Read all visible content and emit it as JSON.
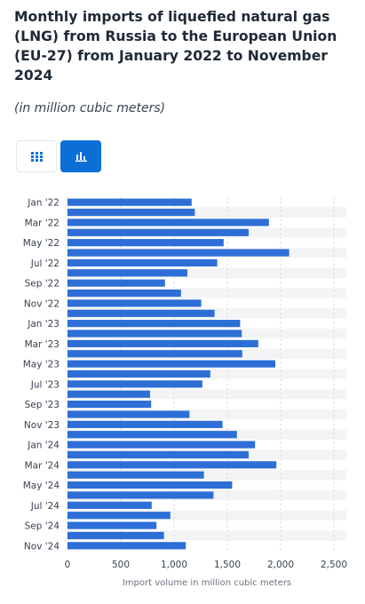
{
  "header": {
    "title": "Monthly imports of liquefied natural gas (LNG) from Russia to the European Union (EU-27) from January 2022 to November 2024",
    "subtitle": "(in million cubic meters)"
  },
  "view_toggle": {
    "table_icon": "grid-table-icon",
    "chart_icon": "bar-chart-icon",
    "active": "chart",
    "accent_color": "#0b6fd6"
  },
  "chart_data": {
    "type": "bar",
    "orientation": "horizontal",
    "categories": [
      "Jan '22",
      "Feb '22",
      "Mar '22",
      "Apr '22",
      "May '22",
      "Jun '22",
      "Jul '22",
      "Aug '22",
      "Sep '22",
      "Oct '22",
      "Nov '22",
      "Dec '22",
      "Jan '23",
      "Feb '23",
      "Mar '23",
      "Apr '23",
      "May '23",
      "Jun '23",
      "Jul '23",
      "Aug '23",
      "Sep '23",
      "Oct '23",
      "Nov '23",
      "Dec '23",
      "Jan '24",
      "Feb '24",
      "Mar '24",
      "Apr '24",
      "May '24",
      "Jun '24",
      "Jul '24",
      "Aug '24",
      "Sep '24",
      "Oct '24",
      "Nov '24"
    ],
    "tick_labels": [
      "Jan '22",
      "",
      "Mar '22",
      "",
      "May '22",
      "",
      "Jul '22",
      "",
      "Sep '22",
      "",
      "Nov '22",
      "",
      "Jan '23",
      "",
      "Mar '23",
      "",
      "May '23",
      "",
      "Jul '23",
      "",
      "Sep '23",
      "",
      "Nov '23",
      "",
      "Jan '24",
      "",
      "Mar '24",
      "",
      "May '24",
      "",
      "Jul '24",
      "",
      "Sep '24",
      "",
      "Nov '24"
    ],
    "values": [
      1165,
      1195,
      1890,
      1700,
      1465,
      2080,
      1405,
      1125,
      915,
      1065,
      1255,
      1380,
      1620,
      1635,
      1790,
      1640,
      1950,
      1340,
      1265,
      775,
      785,
      1145,
      1455,
      1590,
      1760,
      1700,
      1960,
      1280,
      1545,
      1370,
      790,
      965,
      835,
      905,
      1110
    ],
    "xlim": [
      0,
      2500
    ],
    "xticks": [
      0,
      500,
      1000,
      1500,
      2000,
      2500
    ],
    "xtick_labels": [
      "0",
      "500",
      "1,000",
      "1,500",
      "2,000",
      "2,500"
    ],
    "xlabel": "Import volume in million cubic meters",
    "ylabel": "",
    "bar_color": "#2d6fd6",
    "grid": true
  }
}
